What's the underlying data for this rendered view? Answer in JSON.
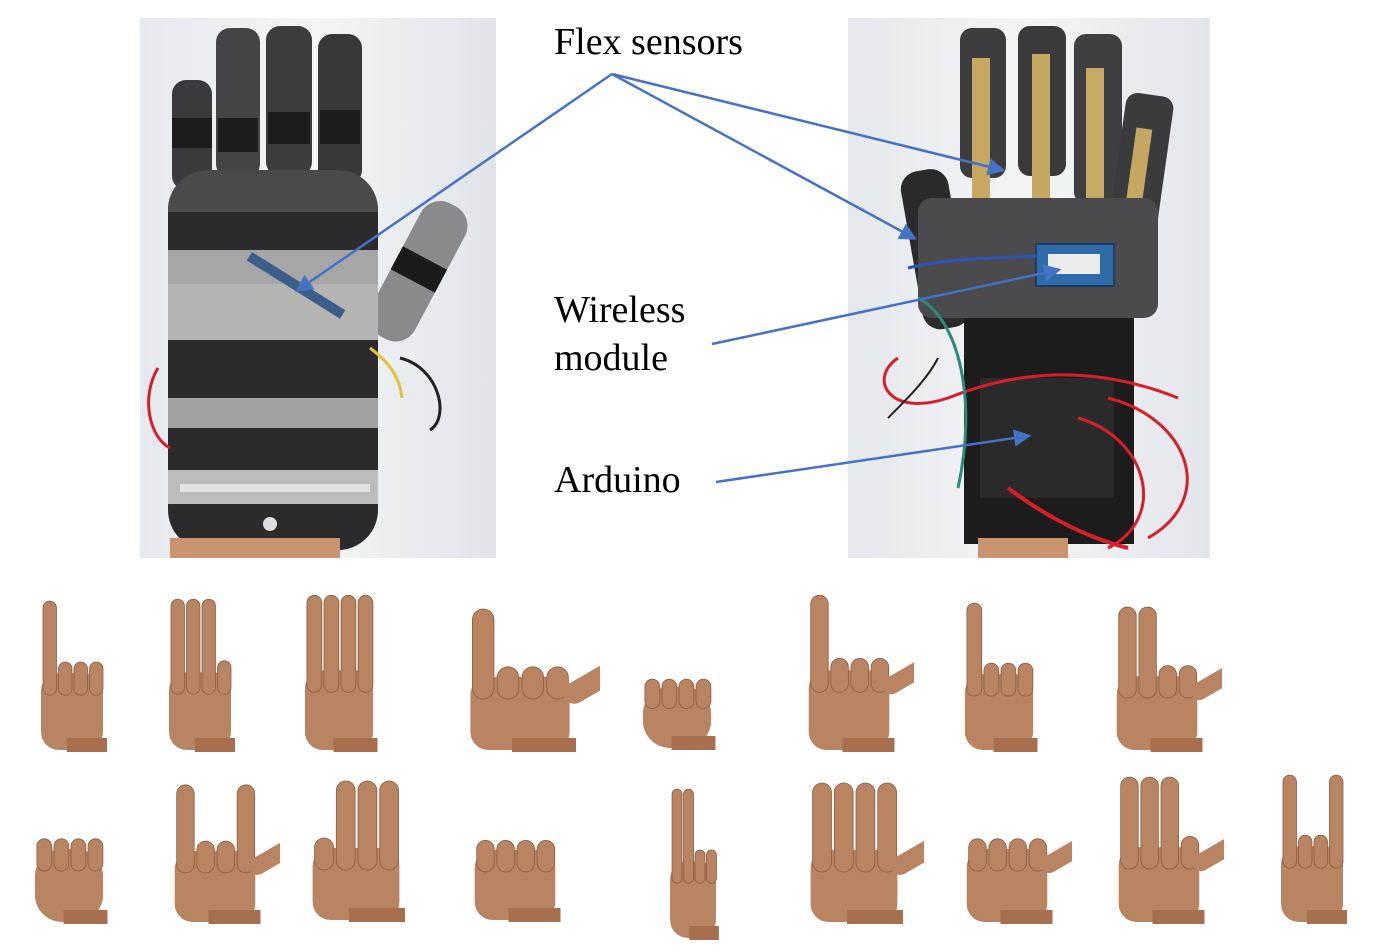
{
  "labels": {
    "flex_sensors": "Flex sensors",
    "wireless_module_line1": "Wireless",
    "wireless_module_line2": "module",
    "arduino": "Arduino"
  },
  "colors": {
    "arrow": "#4472c4",
    "glove_dark": "#2a2a2d",
    "glove_light": "#9a9a9a",
    "skin": "#b98461",
    "wire_red": "#d81e2a"
  },
  "gesture_grid": {
    "rows": 2,
    "row_counts": [
      8,
      9
    ]
  }
}
